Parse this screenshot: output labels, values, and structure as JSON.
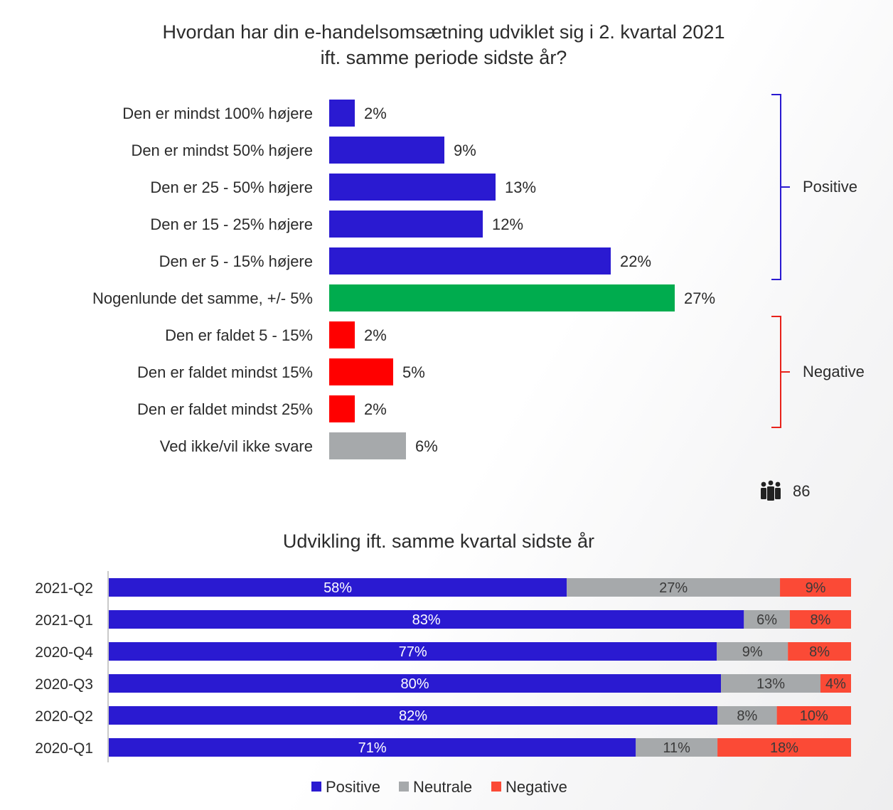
{
  "chart_data": [
    {
      "type": "bar",
      "orientation": "horizontal",
      "title": "Hvordan har din e-handelsomsætning udviklet sig i 2. kvartal 2021 ift. samme periode sidste år?",
      "title_lines": [
        "Hvordan har din e-handelsomsætning udviklet sig i 2. kvartal 2021",
        "ift. samme periode sidste år?"
      ],
      "categories": [
        "Den er mindst 100% højere",
        "Den er mindst 50% højere",
        "Den er 25 - 50% højere",
        "Den er 15 - 25% højere",
        "Den er 5 - 15% højere",
        "Nogenlunde det samme, +/- 5%",
        "Den er faldet 5 - 15%",
        "Den er faldet mindst 15%",
        "Den er faldet mindst 25%",
        "Ved ikke/vil ikke svare"
      ],
      "values": [
        2,
        9,
        13,
        12,
        22,
        27,
        2,
        5,
        2,
        6
      ],
      "value_labels": [
        "2%",
        "9%",
        "13%",
        "12%",
        "22%",
        "27%",
        "2%",
        "5%",
        "2%",
        "6%"
      ],
      "colors": [
        "#2a1ad1",
        "#2a1ad1",
        "#2a1ad1",
        "#2a1ad1",
        "#2a1ad1",
        "#00ac4e",
        "#ff0000",
        "#ff0000",
        "#ff0000",
        "#a6a9ab"
      ],
      "groups": [
        {
          "label": "Positive",
          "from": 0,
          "to": 4,
          "color": "#2a1ad1"
        },
        {
          "label": "Negative",
          "from": 6,
          "to": 8,
          "color": "#e8221b"
        }
      ],
      "respondents": {
        "icon": "people-icon",
        "count": "86"
      }
    },
    {
      "type": "bar",
      "orientation": "horizontal",
      "stacked": true,
      "title": "Udvikling ift. samme kvartal sidste år",
      "categories": [
        "2021-Q2",
        "2021-Q1",
        "2020-Q4",
        "2020-Q3",
        "2020-Q2",
        "2020-Q1"
      ],
      "series": [
        {
          "name": "Positive",
          "color": "#2a1ad1",
          "values": [
            58,
            83,
            77,
            80,
            82,
            71
          ],
          "labels": [
            "58%",
            "83%",
            "77%",
            "80%",
            "82%",
            "71%"
          ]
        },
        {
          "name": "Neutrale",
          "color": "#a6a9ab",
          "values": [
            27,
            6,
            9,
            13,
            8,
            11
          ],
          "labels": [
            "27%",
            "6%",
            "9%",
            "13%",
            "8%",
            "11%"
          ]
        },
        {
          "name": "Negative",
          "color": "#fb4a36",
          "values": [
            9,
            8,
            8,
            4,
            10,
            18
          ],
          "labels": [
            "9%",
            "8%",
            "8%",
            "4%",
            "10%",
            "18%"
          ]
        }
      ],
      "legend": "bottom"
    }
  ]
}
